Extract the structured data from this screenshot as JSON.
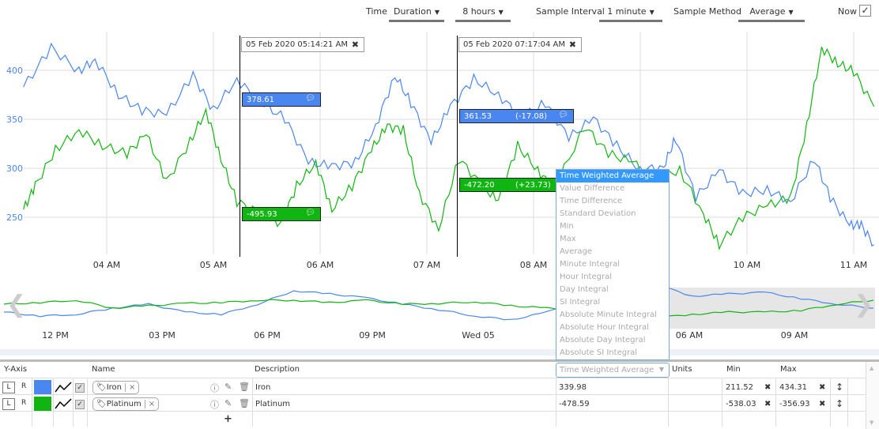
{
  "toolbar": {
    "time_label": "Time",
    "duration": "Duration",
    "duration_value": "8 hours",
    "sample_interval_label": "Sample Interval",
    "sample_interval": "1 minute",
    "sample_method_label": "Sample Method",
    "sample_method": "Average",
    "now_label": "Now",
    "now_checked": "✓"
  },
  "chart_data": {
    "type": "line",
    "yticks": [
      400,
      350,
      300,
      250
    ],
    "ylim": [
      212,
      440
    ],
    "xlim_hours": [
      3.22,
      11.22
    ],
    "xticks": [
      {
        "h": 4,
        "label": "04 AM"
      },
      {
        "h": 5,
        "label": "05 AM"
      },
      {
        "h": 6,
        "label": "06 AM"
      },
      {
        "h": 7,
        "label": "07 AM"
      },
      {
        "h": 8,
        "label": "08 AM"
      },
      {
        "h": 9,
        "label": "09 AM"
      },
      {
        "h": 10,
        "label": "10 AM"
      },
      {
        "h": 11,
        "label": "11 AM"
      }
    ],
    "series": [
      {
        "name": "Iron",
        "color": "#4a86f0",
        "x": [
          3.22,
          3.48,
          3.74,
          3.89,
          4.11,
          4.33,
          4.56,
          4.81,
          5.0,
          5.22,
          5.44,
          5.67,
          5.89,
          6.11,
          6.33,
          6.52,
          6.7,
          6.85,
          7.04,
          7.22,
          7.44,
          7.67,
          7.89,
          8.11,
          8.33,
          8.56,
          8.78,
          9.0,
          9.22,
          9.33,
          9.52,
          9.74,
          9.96,
          10.19,
          10.41,
          10.63,
          10.78,
          10.96,
          11.07,
          11.19
        ],
        "y": [
          383,
          423,
          399,
          411,
          375,
          359,
          355,
          395,
          359,
          391,
          367,
          351,
          306,
          302,
          306,
          343,
          395,
          367,
          327,
          363,
          391,
          375,
          351,
          367,
          331,
          351,
          323,
          298,
          302,
          331,
          270,
          298,
          274,
          278,
          266,
          310,
          270,
          242,
          242,
          222
        ]
      },
      {
        "name": "Platinum",
        "color": "#11b511",
        "x": [
          3.22,
          3.33,
          3.52,
          3.74,
          3.96,
          4.19,
          4.37,
          4.56,
          4.78,
          4.93,
          5.07,
          5.22,
          5.44,
          5.63,
          5.78,
          5.96,
          6.11,
          6.3,
          6.48,
          6.63,
          6.78,
          6.93,
          7.11,
          7.3,
          7.52,
          7.67,
          7.85,
          8.04,
          8.19,
          8.48,
          8.7,
          8.93,
          9.15,
          9.37,
          9.59,
          9.74,
          9.96,
          10.19,
          10.41,
          10.56,
          10.7,
          10.85,
          11.0,
          11.19
        ],
        "y": [
          258,
          282,
          319,
          339,
          323,
          315,
          335,
          286,
          327,
          359,
          310,
          266,
          254,
          242,
          282,
          306,
          258,
          282,
          319,
          343,
          339,
          274,
          238,
          310,
          282,
          266,
          323,
          298,
          278,
          343,
          315,
          306,
          290,
          298,
          254,
          222,
          250,
          262,
          270,
          343,
          423,
          407,
          399,
          363
        ]
      }
    ],
    "overview": {
      "xticks": [
        "12 PM",
        "03 PM",
        "06 PM",
        "09 PM",
        "Wed 05",
        "06 AM",
        "09 AM"
      ],
      "series": [
        {
          "name": "Iron",
          "y": [
            300,
            280,
            288,
            320,
            340,
            300,
            288,
            340,
            408,
            392,
            372,
            340,
            312,
            280,
            260,
            300,
            368,
            420,
            440,
            380,
            392,
            400,
            368,
            340,
            320
          ]
        },
        {
          "name": "Platinum",
          "y": [
            340,
            348,
            360,
            320,
            332,
            344,
            348,
            360,
            360,
            348,
            360,
            340,
            344,
            352,
            332,
            320,
            300,
            240,
            272,
            288,
            300,
            300,
            308,
            340,
            360
          ]
        }
      ]
    }
  },
  "markers": [
    {
      "label": "05 Feb 2020 05:14:21 AM",
      "close": "✖",
      "iron": "378.61",
      "platinum": "-495.93",
      "iron_diff": "",
      "platinum_diff": ""
    },
    {
      "label": "05 Feb 2020 07:17:04 AM",
      "close": "✖",
      "iron": "361.53",
      "platinum": "-472.20",
      "iron_diff": "(-17.08)",
      "platinum_diff": "(+23.73)"
    }
  ],
  "colors": {
    "iron": "#4a86f0",
    "platinum": "#11b511",
    "selected": "#3399ff"
  },
  "dropdown": {
    "options": [
      "Time Weighted Average",
      "Value Difference",
      "Time Difference",
      "Standard Deviation",
      "Min",
      "Max",
      "Average",
      "Minute Integral",
      "Hour Integral",
      "Day Integral",
      "SI Integral",
      "Absolute Minute Integral",
      "Absolute Hour Integral",
      "Absolute Day Integral",
      "Absolute SI Integral"
    ]
  },
  "table": {
    "headers": {
      "yaxis": "Y-Axis",
      "name": "Name",
      "description": "Description",
      "stat": "Time Weighted Average",
      "units": "Units",
      "min": "Min",
      "max": "Max"
    },
    "rows": [
      {
        "l": "L",
        "r": "R",
        "name": "Iron",
        "description": "Iron",
        "value": "339.98",
        "units": "",
        "min": "211.52",
        "max": "434.31"
      },
      {
        "l": "L",
        "r": "R",
        "name": "Platinum",
        "description": "Platinum",
        "value": "-478.59",
        "units": "",
        "min": "-538.03",
        "max": "-356.93"
      }
    ],
    "add": "+"
  }
}
